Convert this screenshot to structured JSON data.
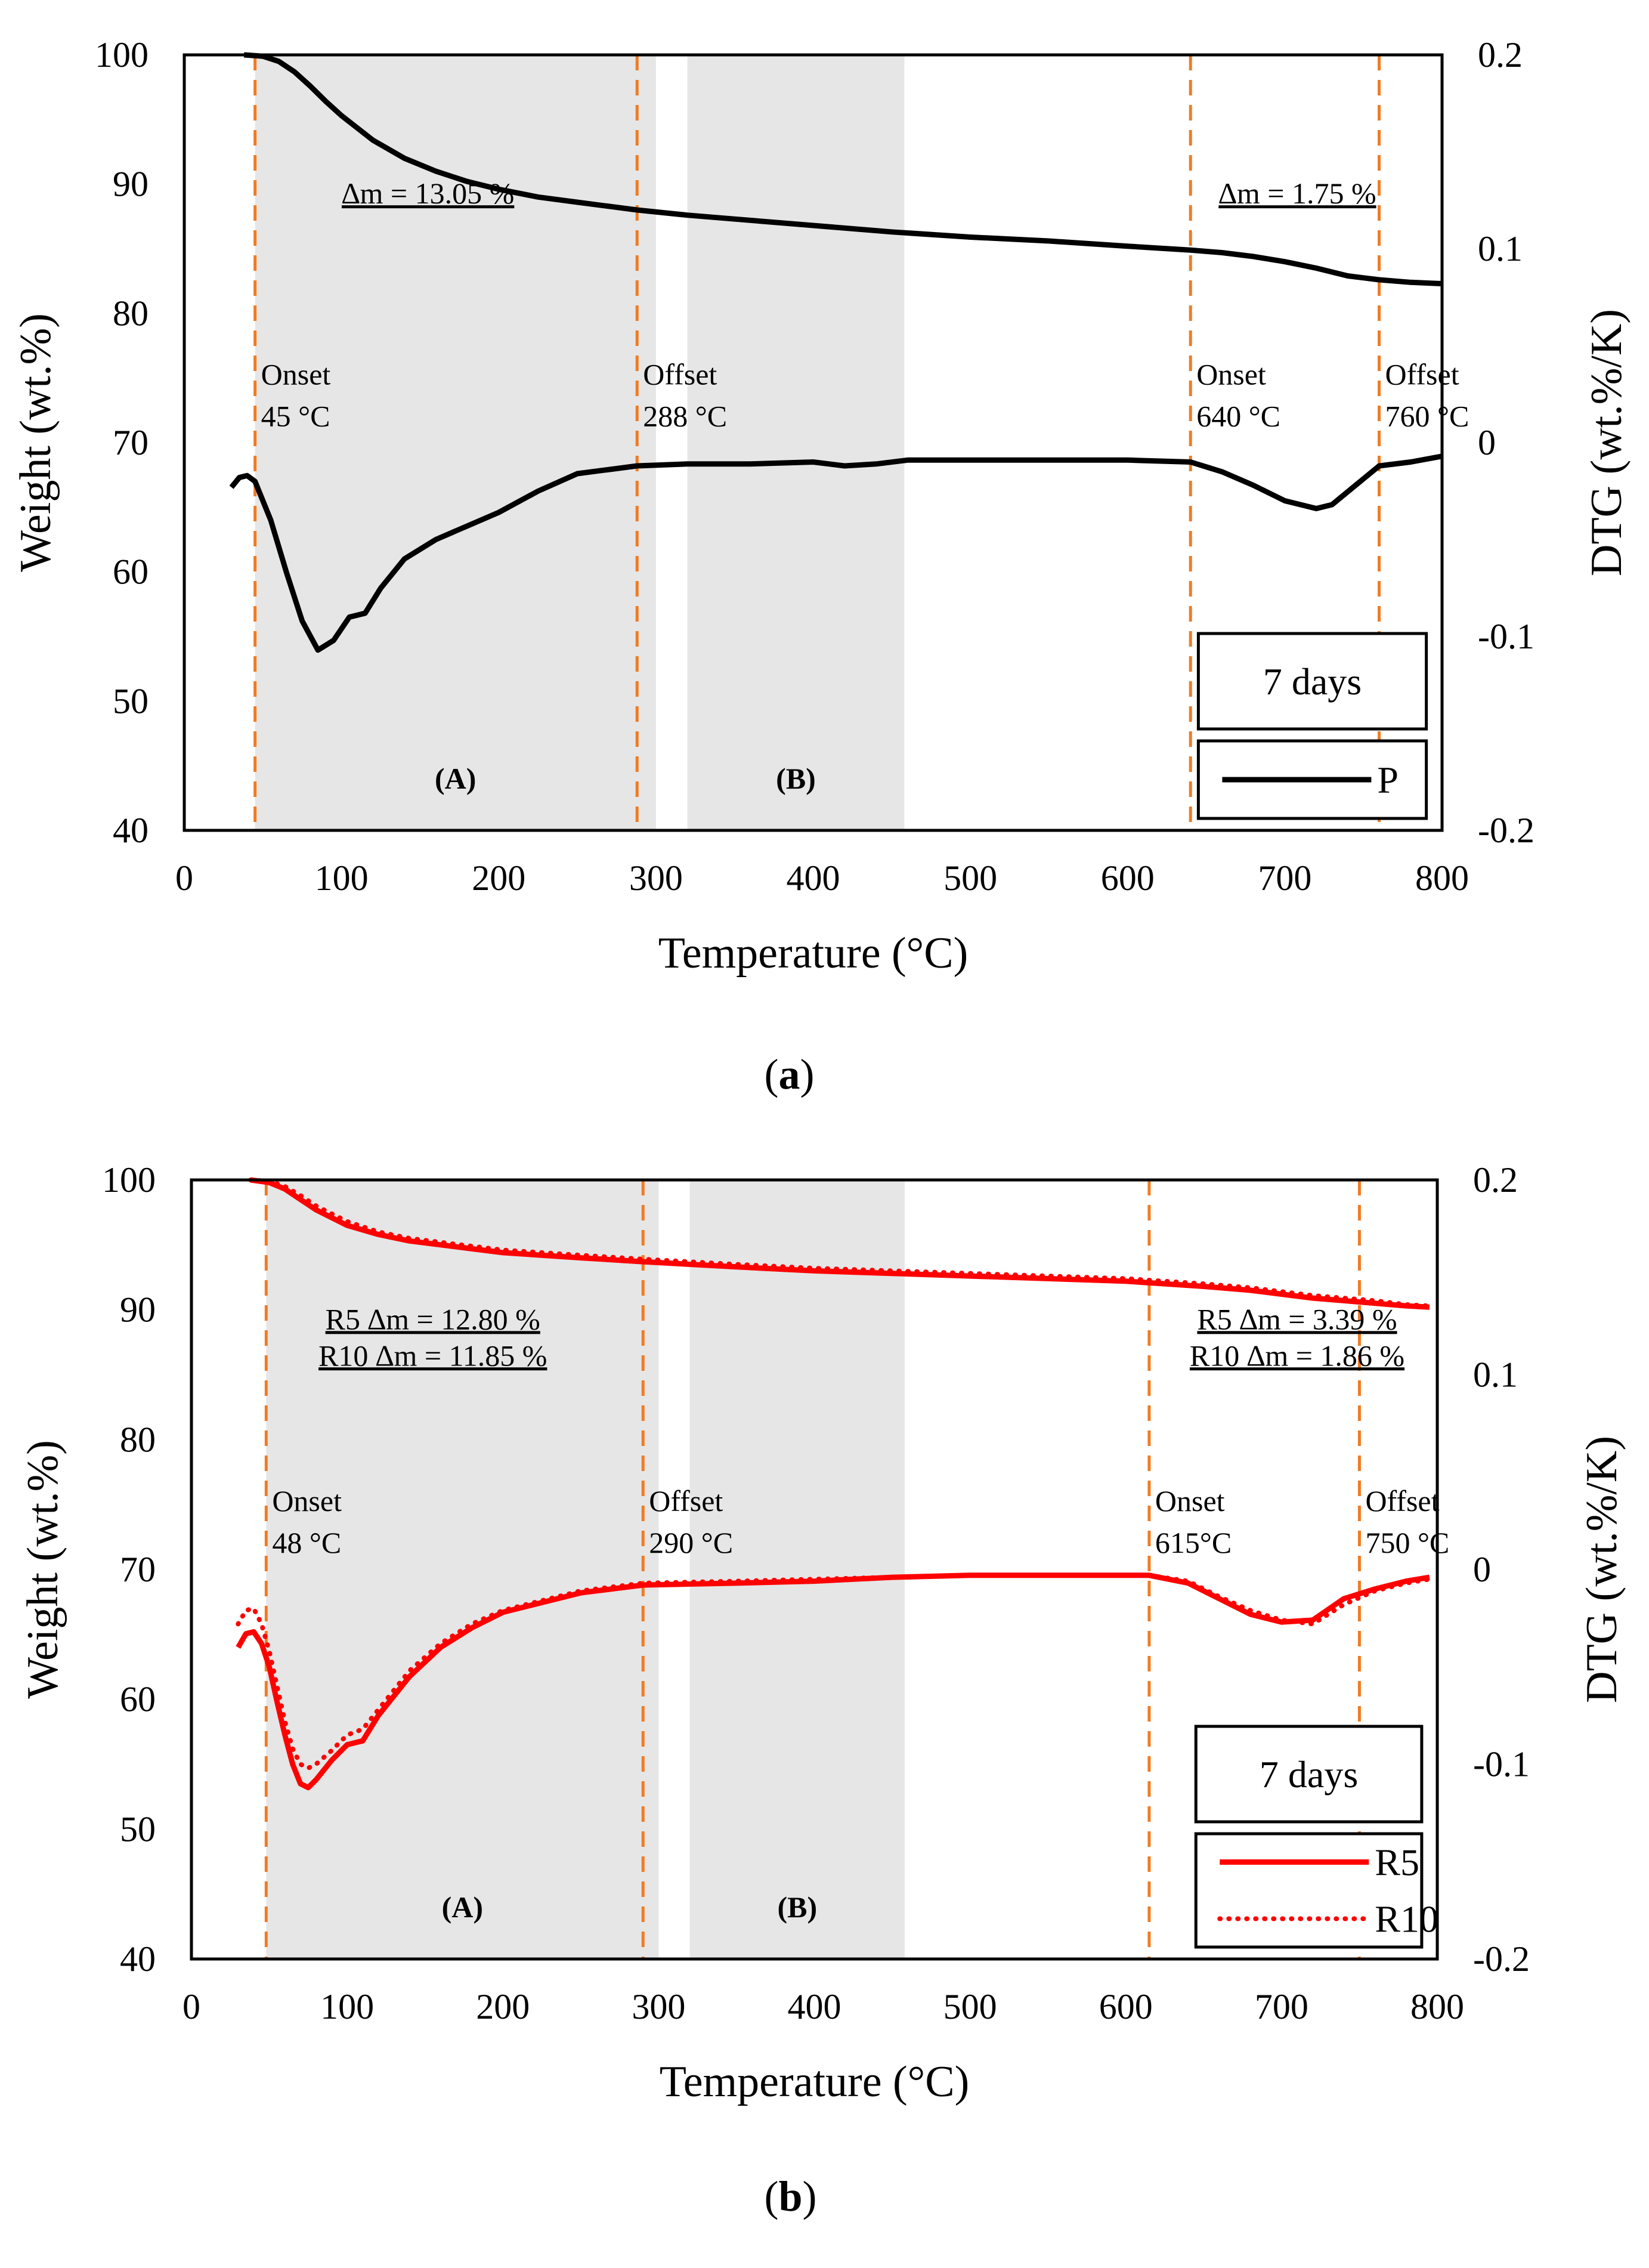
{
  "panels": [
    {
      "id": "a",
      "caption": "a",
      "chart_data": {
        "type": "line",
        "xlabel": "Temperature (°C)",
        "ylabel": "Weight (wt.%)",
        "y2label": "DTG (wt.%/K)",
        "xlim": [
          0,
          800
        ],
        "ylim": [
          40,
          100
        ],
        "y2lim": [
          -0.2,
          0.2
        ],
        "xticks": [
          "0",
          "100",
          "200",
          "300",
          "400",
          "500",
          "600",
          "700",
          "800"
        ],
        "yticks": [
          "40",
          "50",
          "60",
          "70",
          "80",
          "90",
          "100"
        ],
        "y2ticks": [
          "-0.2",
          "-0.1",
          "0",
          "0.1",
          "0.2"
        ],
        "grid": false,
        "legend_position": "bottom-right",
        "legend_title": "7 days",
        "shaded_regions": [
          {
            "label": "(A)",
            "x0": 45,
            "x1": 300
          },
          {
            "label": "(B)",
            "x0": 320,
            "x1": 458
          }
        ],
        "vlines": [
          {
            "x": 45,
            "label_line1": "Onset",
            "label_line2": "45 °C"
          },
          {
            "x": 288,
            "label_line1": "Offset",
            "label_line2": "288 °C"
          },
          {
            "x": 640,
            "label_line1": "Onset",
            "label_line2": "640 °C"
          },
          {
            "x": 760,
            "label_line1": "Offset",
            "label_line2": "760 °C"
          }
        ],
        "annotations": [
          {
            "text": "∆m = 13.05 %",
            "x": 155,
            "y": 88.5
          },
          {
            "text": "∆m = 1.75 %",
            "x": 708,
            "y": 88.5
          }
        ],
        "series": [
          {
            "name": "P",
            "axis": "left",
            "color": "#000000",
            "dash": "solid",
            "legend": true,
            "x": [
              38,
              50,
              60,
              70,
              80,
              90,
              100,
              120,
              140,
              160,
              180,
              200,
              225,
              250,
              288,
              320,
              350,
              400,
              450,
              500,
              550,
              600,
              640,
              660,
              680,
              700,
              720,
              740,
              760,
              780,
              800
            ],
            "y": [
              100,
              99.9,
              99.5,
              98.7,
              97.6,
              96.4,
              95.3,
              93.4,
              92.0,
              91.0,
              90.2,
              89.6,
              89.0,
              88.6,
              88.0,
              87.6,
              87.3,
              86.8,
              86.3,
              85.9,
              85.6,
              85.2,
              84.9,
              84.7,
              84.4,
              84.0,
              83.5,
              82.9,
              82.6,
              82.4,
              82.3
            ]
          },
          {
            "name": "P",
            "axis": "right",
            "color": "#000000",
            "dash": "solid",
            "legend": false,
            "x": [
              30,
              35,
              40,
              45,
              55,
              65,
              75,
              85,
              95,
              105,
              115,
              125,
              140,
              160,
              180,
              200,
              225,
              250,
              288,
              320,
              360,
              400,
              420,
              440,
              460,
              500,
              600,
              640,
              660,
              680,
              700,
              720,
              730,
              745,
              760,
              780,
              800
            ],
            "y": [
              -0.023,
              -0.018,
              -0.017,
              -0.02,
              -0.04,
              -0.067,
              -0.092,
              -0.107,
              -0.102,
              -0.09,
              -0.088,
              -0.075,
              -0.06,
              -0.05,
              -0.043,
              -0.036,
              -0.025,
              -0.016,
              -0.012,
              -0.011,
              -0.011,
              -0.01,
              -0.012,
              -0.011,
              -0.009,
              -0.009,
              -0.009,
              -0.01,
              -0.015,
              -0.022,
              -0.03,
              -0.034,
              -0.032,
              -0.022,
              -0.012,
              -0.01,
              -0.007
            ]
          }
        ]
      }
    },
    {
      "id": "b",
      "caption": "b",
      "chart_data": {
        "type": "line",
        "xlabel": "Temperature (°C)",
        "ylabel": "Weight (wt.%)",
        "y2label": "DTG (wt.%/K)",
        "xlim": [
          0,
          800
        ],
        "ylim": [
          40,
          100
        ],
        "y2lim": [
          -0.2,
          0.2
        ],
        "xticks": [
          "0",
          "100",
          "200",
          "300",
          "400",
          "500",
          "600",
          "700",
          "800"
        ],
        "yticks": [
          "40",
          "50",
          "60",
          "70",
          "80",
          "90",
          "100"
        ],
        "y2ticks": [
          "-0.2",
          "-0.1",
          "0",
          "0.1",
          "0.2"
        ],
        "grid": false,
        "legend_position": "bottom-right",
        "legend_title": "7 days",
        "shaded_regions": [
          {
            "label": "(A)",
            "x0": 48,
            "x1": 300
          },
          {
            "label": "(B)",
            "x0": 320,
            "x1": 458
          }
        ],
        "vlines": [
          {
            "x": 48,
            "label_line1": "Onset",
            "label_line2": "48 °C"
          },
          {
            "x": 290,
            "label_line1": "Offset",
            "label_line2": "290 °C"
          },
          {
            "x": 615,
            "label_line1": "Onset",
            "label_line2": "615°C"
          },
          {
            "x": 750,
            "label_line1": "Offset",
            "label_line2": "750 °C"
          }
        ],
        "annotations": [
          {
            "text": "R5 ∆m = 12.80 %",
            "x": 155,
            "y": 88.5
          },
          {
            "text": "R10 ∆m = 11.85 %",
            "x": 155,
            "y": 85.7
          },
          {
            "text": "R5 ∆m = 3.39 %",
            "x": 710,
            "y": 88.5
          },
          {
            "text": "R10 ∆m = 1.86 %",
            "x": 710,
            "y": 85.7
          }
        ],
        "series": [
          {
            "name": "R5",
            "axis": "left",
            "color": "#ff0000",
            "dash": "solid",
            "legend": true,
            "x": [
              38,
              50,
              60,
              70,
              80,
              100,
              120,
              140,
              160,
              180,
              200,
              250,
              290,
              350,
              400,
              450,
              500,
              550,
              600,
              650,
              680,
              700,
              720,
              740,
              760,
              780,
              795
            ],
            "y": [
              100,
              99.8,
              99.3,
              98.5,
              97.7,
              96.5,
              95.8,
              95.3,
              95.0,
              94.7,
              94.4,
              94.0,
              93.7,
              93.3,
              93.0,
              92.8,
              92.6,
              92.4,
              92.2,
              91.8,
              91.5,
              91.2,
              90.9,
              90.7,
              90.5,
              90.3,
              90.2
            ]
          },
          {
            "name": "R10",
            "axis": "left",
            "color": "#ff0000",
            "dash": "dotted",
            "legend": true,
            "x": [
              38,
              50,
              60,
              70,
              80,
              100,
              120,
              140,
              160,
              180,
              200,
              250,
              290,
              350,
              400,
              450,
              500,
              550,
              600,
              650,
              680,
              700,
              720,
              740,
              760,
              780,
              795
            ],
            "y": [
              100,
              99.9,
              99.5,
              98.8,
              98.0,
              96.8,
              96.0,
              95.5,
              95.2,
              94.9,
              94.6,
              94.2,
              93.9,
              93.5,
              93.2,
              93.0,
              92.8,
              92.6,
              92.4,
              92.0,
              91.7,
              91.4,
              91.1,
              90.9,
              90.7,
              90.4,
              90.3
            ]
          },
          {
            "name": "R5",
            "axis": "right",
            "color": "#ff0000",
            "dash": "solid",
            "legend": false,
            "x": [
              30,
              35,
              40,
              45,
              50,
              55,
              60,
              65,
              70,
              75,
              80,
              90,
              100,
              110,
              120,
              140,
              160,
              180,
              200,
              250,
              290,
              350,
              400,
              450,
              500,
              550,
              600,
              615,
              640,
              660,
              680,
              700,
              720,
              740,
              760,
              780,
              795
            ],
            "y": [
              -0.04,
              -0.033,
              -0.032,
              -0.038,
              -0.05,
              -0.068,
              -0.085,
              -0.1,
              -0.11,
              -0.112,
              -0.108,
              -0.098,
              -0.09,
              -0.088,
              -0.075,
              -0.055,
              -0.04,
              -0.03,
              -0.022,
              -0.012,
              -0.008,
              -0.007,
              -0.006,
              -0.004,
              -0.003,
              -0.003,
              -0.003,
              -0.003,
              -0.007,
              -0.015,
              -0.023,
              -0.027,
              -0.026,
              -0.015,
              -0.01,
              -0.006,
              -0.004
            ]
          },
          {
            "name": "R10",
            "axis": "right",
            "color": "#ff0000",
            "dash": "dotted",
            "legend": false,
            "x": [
              30,
              35,
              40,
              45,
              50,
              55,
              60,
              65,
              70,
              75,
              80,
              90,
              100,
              110,
              120,
              140,
              160,
              180,
              200,
              250,
              290,
              350,
              400,
              450,
              500,
              550,
              600,
              615,
              640,
              660,
              680,
              700,
              720,
              740,
              760,
              780,
              795
            ],
            "y": [
              -0.028,
              -0.021,
              -0.02,
              -0.028,
              -0.042,
              -0.06,
              -0.078,
              -0.092,
              -0.1,
              -0.102,
              -0.1,
              -0.093,
              -0.085,
              -0.082,
              -0.072,
              -0.052,
              -0.038,
              -0.028,
              -0.021,
              -0.011,
              -0.007,
              -0.006,
              -0.005,
              -0.004,
              -0.003,
              -0.003,
              -0.003,
              -0.003,
              -0.006,
              -0.014,
              -0.021,
              -0.026,
              -0.028,
              -0.018,
              -0.011,
              -0.007,
              -0.005
            ]
          }
        ]
      }
    }
  ]
}
